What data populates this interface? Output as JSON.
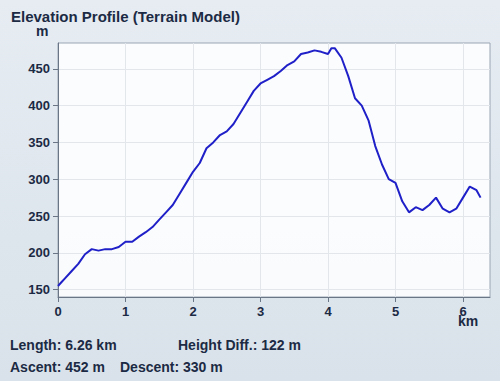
{
  "chart_data": {
    "type": "line",
    "title": "Elevation Profile (Terrain Model)",
    "x_label": "km",
    "y_label": "m",
    "x": [
      0,
      0.05,
      0.1,
      0.2,
      0.3,
      0.4,
      0.5,
      0.6,
      0.7,
      0.8,
      0.9,
      1.0,
      1.1,
      1.2,
      1.3,
      1.4,
      1.5,
      1.6,
      1.7,
      1.8,
      1.9,
      2.0,
      2.1,
      2.2,
      2.3,
      2.4,
      2.5,
      2.6,
      2.7,
      2.8,
      2.9,
      3.0,
      3.1,
      3.2,
      3.3,
      3.4,
      3.5,
      3.6,
      3.7,
      3.8,
      3.9,
      4.0,
      4.05,
      4.1,
      4.2,
      4.3,
      4.4,
      4.5,
      4.6,
      4.7,
      4.8,
      4.9,
      5.0,
      5.1,
      5.2,
      5.3,
      5.4,
      5.5,
      5.6,
      5.7,
      5.8,
      5.9,
      6.0,
      6.1,
      6.2,
      6.26
    ],
    "values": [
      155,
      160,
      165,
      175,
      185,
      198,
      205,
      203,
      205,
      205,
      208,
      215,
      215,
      222,
      228,
      235,
      245,
      255,
      265,
      280,
      295,
      310,
      322,
      342,
      350,
      360,
      365,
      375,
      390,
      405,
      420,
      430,
      435,
      440,
      447,
      455,
      460,
      470,
      472,
      475,
      473,
      470,
      478,
      478,
      465,
      440,
      410,
      400,
      380,
      345,
      320,
      300,
      295,
      270,
      255,
      262,
      258,
      265,
      275,
      260,
      255,
      260,
      275,
      290,
      285,
      275
    ],
    "color": "#2020c8",
    "xlim": [
      0,
      6.4
    ],
    "xticks": [
      0,
      1,
      2,
      3,
      4,
      5,
      6
    ],
    "ylim": [
      140,
      485
    ],
    "yticks": [
      150,
      200,
      250,
      300,
      350,
      400,
      450
    ],
    "grid": true,
    "footer": [
      "Length: 6.26 km",
      "Height Diff.: 122 m",
      "Ascent: 452 m",
      "Descent: 330 m"
    ]
  }
}
